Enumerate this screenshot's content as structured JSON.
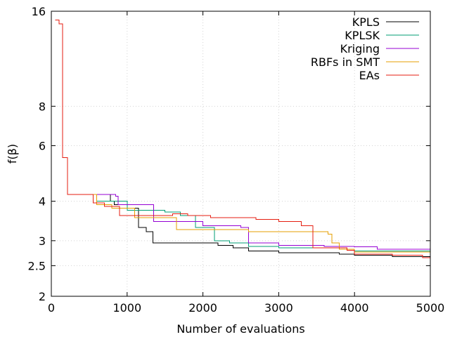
{
  "chart_data": {
    "type": "line",
    "title": "",
    "xlabel": "Number of evaluations",
    "ylabel": "f(β)",
    "xlim": [
      0,
      5000
    ],
    "ylim": [
      2,
      16
    ],
    "y_scale": "log",
    "grid": true,
    "legend_position": "top-right",
    "x_ticks": [
      0,
      1000,
      2000,
      3000,
      4000,
      5000
    ],
    "x_tick_labels": [
      "0",
      "1000",
      "2000",
      "3000",
      "4000",
      "5000"
    ],
    "y_ticks": [
      2,
      2.5,
      3,
      4,
      6,
      8,
      16
    ],
    "y_tick_labels": [
      "2",
      "2.5",
      "3",
      "4",
      "6",
      "8",
      "16"
    ],
    "series": [
      {
        "name": "KPLS",
        "color": "#000000",
        "points": [
          [
            50,
            15.0
          ],
          [
            100,
            14.6
          ],
          [
            150,
            5.5
          ],
          [
            215,
            4.2
          ],
          [
            500,
            4.2
          ],
          [
            740,
            4.2
          ],
          [
            780,
            4.0
          ],
          [
            830,
            3.9
          ],
          [
            1000,
            3.8
          ],
          [
            1150,
            3.3
          ],
          [
            1250,
            3.2
          ],
          [
            1340,
            2.95
          ],
          [
            2000,
            2.95
          ],
          [
            2200,
            2.9
          ],
          [
            2400,
            2.85
          ],
          [
            2600,
            2.78
          ],
          [
            3000,
            2.75
          ],
          [
            3700,
            2.75
          ],
          [
            3800,
            2.72
          ],
          [
            4000,
            2.7
          ],
          [
            4500,
            2.67
          ],
          [
            5000,
            2.65
          ]
        ]
      },
      {
        "name": "KPLSK",
        "color": "#009e73",
        "points": [
          [
            50,
            15.0
          ],
          [
            100,
            14.6
          ],
          [
            150,
            5.5
          ],
          [
            215,
            4.2
          ],
          [
            500,
            4.2
          ],
          [
            600,
            4.0
          ],
          [
            850,
            4.0
          ],
          [
            1000,
            3.75
          ],
          [
            1500,
            3.7
          ],
          [
            1700,
            3.6
          ],
          [
            1900,
            3.3
          ],
          [
            2150,
            3.0
          ],
          [
            2350,
            2.95
          ],
          [
            2600,
            2.88
          ],
          [
            3000,
            2.85
          ],
          [
            3500,
            2.85
          ],
          [
            3800,
            2.82
          ],
          [
            4000,
            2.78
          ],
          [
            5000,
            2.76
          ]
        ]
      },
      {
        "name": "Kriging",
        "color": "#9400d3",
        "points": [
          [
            50,
            15.0
          ],
          [
            100,
            14.6
          ],
          [
            150,
            5.5
          ],
          [
            215,
            4.2
          ],
          [
            700,
            4.2
          ],
          [
            850,
            4.15
          ],
          [
            880,
            3.9
          ],
          [
            1300,
            3.9
          ],
          [
            1350,
            3.45
          ],
          [
            2000,
            3.35
          ],
          [
            2500,
            3.3
          ],
          [
            2600,
            2.95
          ],
          [
            3000,
            2.9
          ],
          [
            3500,
            2.9
          ],
          [
            3600,
            2.88
          ],
          [
            4000,
            2.87
          ],
          [
            4300,
            2.82
          ],
          [
            5000,
            2.8
          ]
        ]
      },
      {
        "name": "RBFs in SMT",
        "color": "#e69f00",
        "points": [
          [
            50,
            15.0
          ],
          [
            100,
            14.6
          ],
          [
            150,
            5.5
          ],
          [
            215,
            4.2
          ],
          [
            500,
            4.2
          ],
          [
            600,
            3.9
          ],
          [
            800,
            3.8
          ],
          [
            1100,
            3.55
          ],
          [
            1400,
            3.55
          ],
          [
            1650,
            3.25
          ],
          [
            2000,
            3.25
          ],
          [
            2600,
            3.2
          ],
          [
            3000,
            3.2
          ],
          [
            3650,
            3.15
          ],
          [
            3700,
            2.95
          ],
          [
            3800,
            2.82
          ],
          [
            4000,
            2.76
          ],
          [
            5000,
            2.76
          ]
        ]
      },
      {
        "name": "EAs",
        "color": "#e51e10",
        "points": [
          [
            50,
            15.0
          ],
          [
            100,
            14.6
          ],
          [
            150,
            5.5
          ],
          [
            215,
            4.2
          ],
          [
            500,
            4.2
          ],
          [
            550,
            3.95
          ],
          [
            700,
            3.85
          ],
          [
            900,
            3.6
          ],
          [
            1200,
            3.6
          ],
          [
            1600,
            3.65
          ],
          [
            1800,
            3.6
          ],
          [
            2100,
            3.55
          ],
          [
            2700,
            3.5
          ],
          [
            3000,
            3.45
          ],
          [
            3300,
            3.35
          ],
          [
            3450,
            2.85
          ],
          [
            3900,
            2.8
          ],
          [
            4000,
            2.72
          ],
          [
            4500,
            2.7
          ],
          [
            4900,
            2.65
          ],
          [
            5000,
            2.52
          ]
        ]
      }
    ]
  }
}
